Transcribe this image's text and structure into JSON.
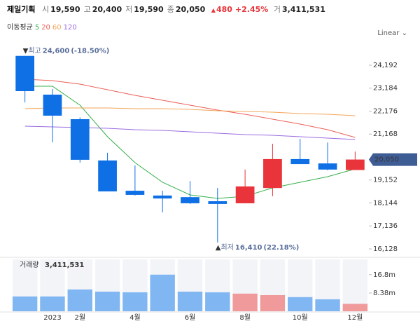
{
  "header": {
    "name": "제일기획",
    "fields": [
      {
        "label": "시",
        "value": "19,590"
      },
      {
        "label": "고",
        "value": "20,400"
      },
      {
        "label": "저",
        "value": "19,590"
      },
      {
        "label": "종",
        "value": "20,050"
      }
    ],
    "change": "480",
    "change_pct": "+2.45%",
    "volume_label": "거",
    "volume": "3,411,531"
  },
  "chart_data": {
    "type": "candlestick",
    "categories": [
      null,
      "2023",
      "2월",
      null,
      "4월",
      null,
      "6월",
      null,
      "8월",
      null,
      "10월",
      null,
      "12월"
    ],
    "open": [
      24600,
      22900,
      21822,
      20010,
      18680,
      18470,
      18400,
      18220,
      18130,
      18800,
      20070,
      19880,
      19590
    ],
    "high": [
      24600,
      23150,
      21900,
      20350,
      19790,
      18680,
      19110,
      18800,
      19610,
      20740,
      20960,
      20800,
      20400
    ],
    "low": [
      22560,
      20806,
      19920,
      18650,
      18470,
      17730,
      18100,
      16410,
      18130,
      18440,
      19850,
      19580,
      19590
    ],
    "close": [
      23053,
      21976,
      20040,
      18650,
      18500,
      18340,
      18130,
      18100,
      18870,
      20070,
      19850,
      19610,
      20050
    ],
    "up_color": "#e8343a",
    "down_color": "#0f70e6",
    "ylim": [
      15820,
      25115
    ],
    "yticks": [
      {
        "value": 16128,
        "label": "16,128"
      },
      {
        "value": 17136,
        "label": "17,136"
      },
      {
        "value": 18144,
        "label": "18,144"
      },
      {
        "value": 19152,
        "label": "19,152"
      },
      {
        "value": 21168,
        "label": "21,168"
      },
      {
        "value": 22176,
        "label": "22,176"
      },
      {
        "value": 23184,
        "label": "23,184"
      },
      {
        "value": 24192,
        "label": "24,192"
      }
    ],
    "scale_label": "Linear",
    "moving_averages": {
      "title": "이동평균",
      "series": [
        {
          "name": "5",
          "color": "#34b04a",
          "values": [
            23269,
            23269,
            22437,
            21053,
            19914,
            19052,
            18498,
            18344,
            18436,
            18806,
            19052,
            19298,
            19637
          ]
        },
        {
          "name": "20",
          "color": "#ec5f56",
          "values": [
            23576,
            23515,
            23361,
            23115,
            22869,
            22653,
            22437,
            22222,
            22037,
            21822,
            21607,
            21360,
            21022
          ]
        },
        {
          "name": "60",
          "color": "#f2a65a",
          "values": [
            22284,
            22315,
            22315,
            22315,
            22284,
            22284,
            22253,
            22191,
            22161,
            22130,
            22068,
            22037,
            21976
          ]
        },
        {
          "name": "120",
          "color": "#9b6be0",
          "values": [
            21514,
            21483,
            21453,
            21422,
            21360,
            21330,
            21268,
            21206,
            21145,
            21114,
            21053,
            20991,
            20929
          ]
        }
      ]
    },
    "annotations": [
      {
        "text": "최고",
        "value": 24600,
        "value_label": "24,600",
        "change": "(-18.50%)"
      },
      {
        "text": "최저",
        "value": 16410,
        "value_label": "16,410",
        "change": "(22.18%)"
      }
    ],
    "last_price": {
      "value": 20050,
      "label": "20,050"
    },
    "volume": {
      "title": "거래량",
      "value_label": "3,411,531",
      "values": [
        6800000,
        6800000,
        10000000,
        9000000,
        8700000,
        16800000,
        9000000,
        8700000,
        8100000,
        7400000,
        6500000,
        5500000,
        3411531
      ],
      "up_color": "#f09a9c",
      "down_color": "#80b6f2",
      "ylim": [
        0,
        23800000
      ],
      "yticks": [
        {
          "value": 8380000,
          "label": "8.38m"
        },
        {
          "value": 16800000,
          "label": "16.8m"
        }
      ]
    }
  }
}
